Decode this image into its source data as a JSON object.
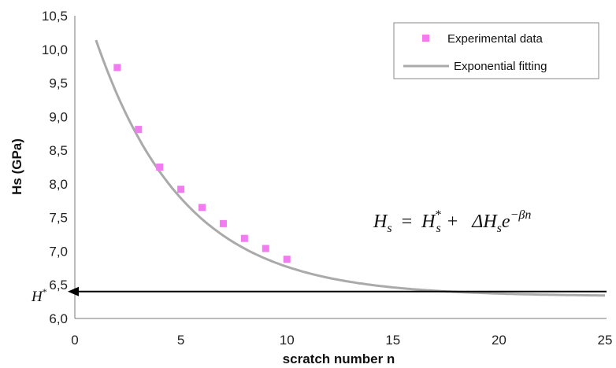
{
  "chart_data": {
    "type": "scatter",
    "xlabel": "scratch number n",
    "ylabel": "Hs (GPa)",
    "xlim": [
      0,
      25
    ],
    "ylim": [
      6.0,
      10.5
    ],
    "x_ticks": [
      "0",
      "5",
      "10",
      "15",
      "20",
      "25"
    ],
    "y_ticks": [
      "6,0",
      "6,5",
      "7,0",
      "7,5",
      "8,0",
      "8,5",
      "9,0",
      "9,5",
      "10,0",
      "10,5"
    ],
    "grid": false,
    "legend_position": "top-right",
    "series": [
      {
        "name": "Experimental data",
        "kind": "scatter",
        "color": "#f07cf0",
        "x": [
          2,
          3,
          4,
          5,
          6,
          7,
          8,
          9,
          10
        ],
        "y": [
          9.73,
          8.81,
          8.25,
          7.92,
          7.65,
          7.41,
          7.19,
          7.04,
          6.88
        ]
      },
      {
        "name": "Exponential fitting",
        "kind": "line",
        "color": "#aaaaaa",
        "model": {
          "H_star": 6.33,
          "delta_Hs": 4.84,
          "beta": 0.24
        },
        "x_range": [
          1,
          25
        ]
      }
    ],
    "annotations": {
      "asymptote_label": "H*",
      "asymptote_value": 6.4,
      "equation": {
        "lhs": "H",
        "lhs_sub": "s",
        "eq": "=",
        "t1": "H",
        "t1_sub": "s",
        "t1_sup": "*",
        "plus": "+",
        "t2": "ΔH",
        "t2_sub": "s",
        "e": "e",
        "exp": "−βn"
      }
    }
  }
}
